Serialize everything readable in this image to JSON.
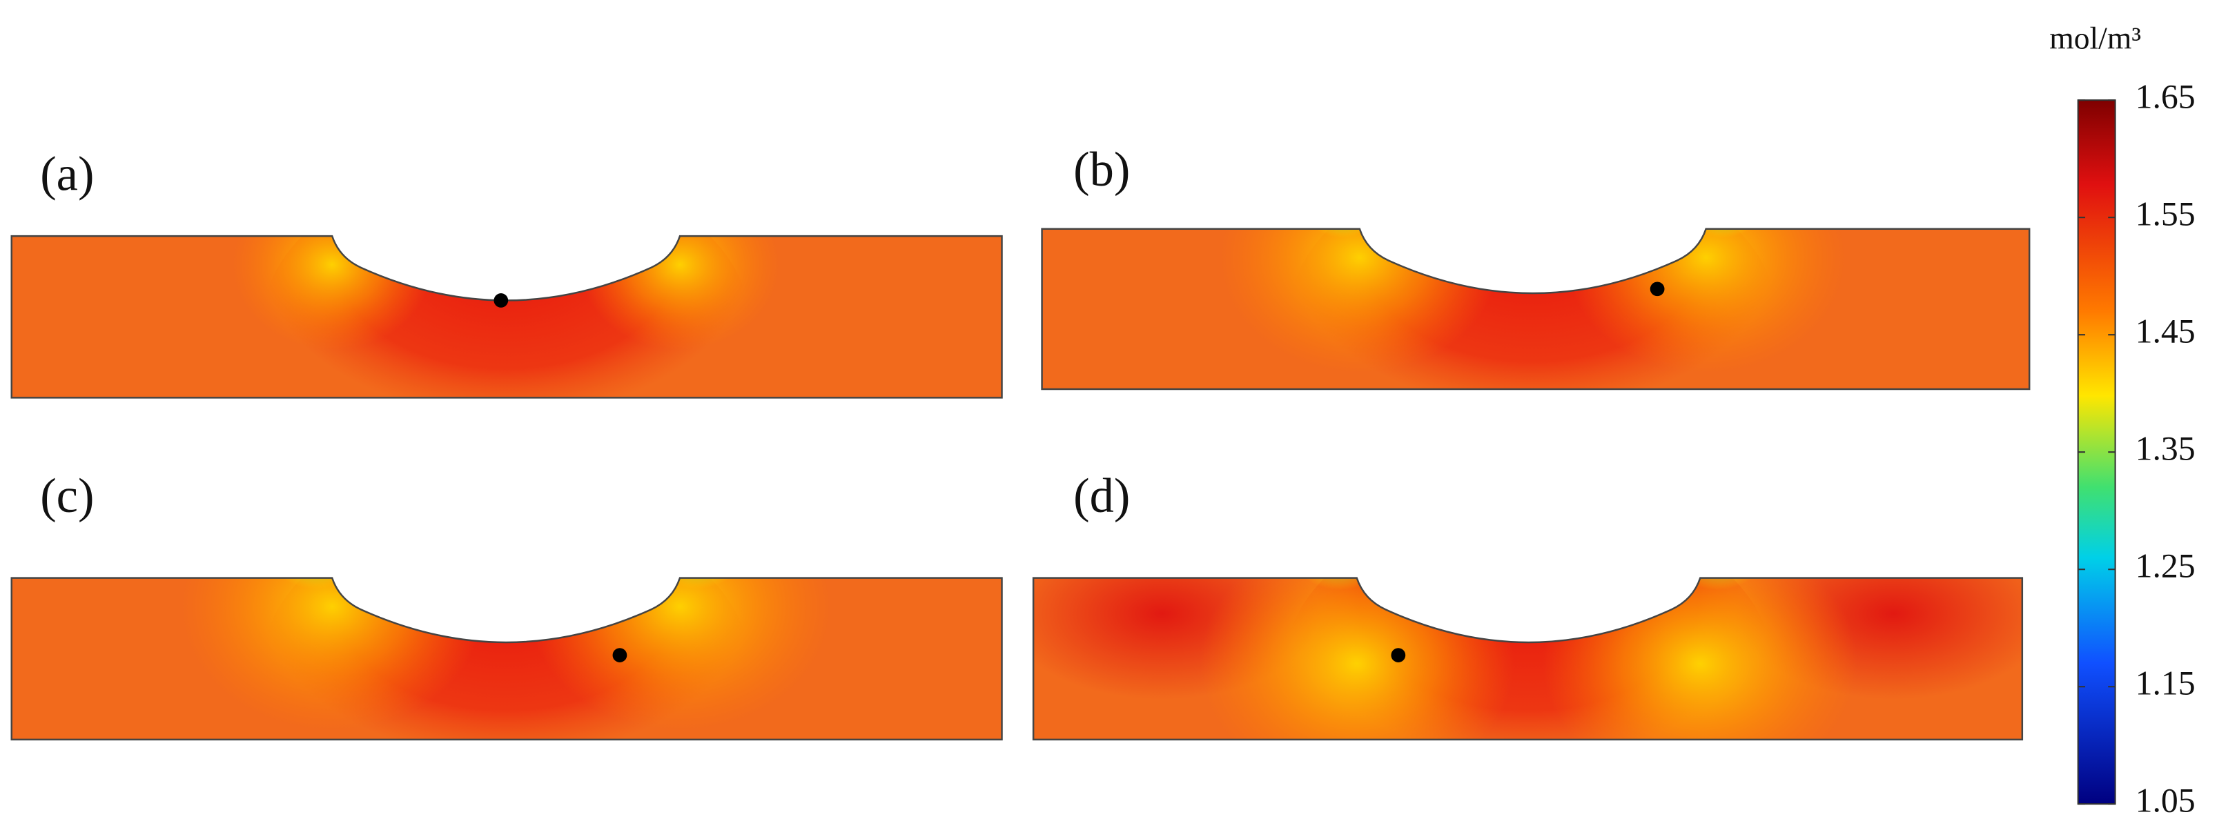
{
  "panels": [
    {
      "label": "(a)"
    },
    {
      "label": "(b)"
    },
    {
      "label": "(c)"
    },
    {
      "label": "(d)"
    }
  ],
  "colorbar": {
    "unit": "mol/m³",
    "range": [
      1.05,
      1.65
    ],
    "ticks": [
      1.65,
      1.55,
      1.45,
      1.35,
      1.25,
      1.15,
      1.05
    ],
    "colormap": "jet"
  }
}
